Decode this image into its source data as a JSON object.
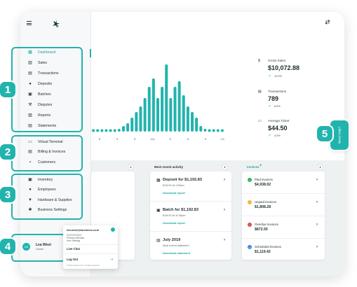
{
  "brand": {
    "accent": "#21b4ad",
    "accent_dark": "#1aa7a2"
  },
  "header": {
    "menu_icon": "hamburger-icon",
    "logo_icon": "brand-logo-icon",
    "sync_icon": "swap-arrows-icon"
  },
  "sidebar": {
    "groups": [
      {
        "badge": "1",
        "items": [
          {
            "label": "Dashboard",
            "icon": "grid-icon",
            "active": true
          },
          {
            "label": "Sales",
            "icon": "bar-chart-icon"
          },
          {
            "label": "Transactions",
            "icon": "transactions-icon"
          },
          {
            "label": "Deposits",
            "icon": "piggy-bank-icon"
          },
          {
            "label": "Batches",
            "icon": "batches-icon"
          },
          {
            "label": "Disputes",
            "icon": "gavel-icon"
          },
          {
            "label": "Reports",
            "icon": "report-icon"
          },
          {
            "label": "Statements",
            "icon": "document-icon"
          }
        ]
      },
      {
        "badge": "2",
        "items": [
          {
            "label": "Virtual Terminal",
            "icon": "terminal-icon"
          },
          {
            "label": "Billing & Invoices",
            "icon": "invoice-icon"
          },
          {
            "label": "Customers",
            "icon": "customers-icon"
          }
        ]
      },
      {
        "badge": "3",
        "items": [
          {
            "label": "Inventory",
            "icon": "inventory-icon"
          },
          {
            "label": "Employees",
            "icon": "employees-icon"
          },
          {
            "label": "Hardware & Supplies",
            "icon": "cart-icon"
          },
          {
            "label": "Business Settings",
            "icon": "settings-icon"
          }
        ]
      }
    ],
    "user": {
      "badge": "4",
      "initials": "LW",
      "name": "Lea West",
      "role": "Owner"
    }
  },
  "chart_data": {
    "type": "bar",
    "ticks": [
      "8",
      "8",
      "8",
      "12p",
      "8",
      "8",
      "8",
      "12a"
    ],
    "series": [
      {
        "values": [
          0,
          0,
          0,
          0,
          0,
          0,
          1,
          2,
          3,
          5,
          7,
          9,
          12,
          16,
          19,
          12,
          16,
          24,
          12,
          16,
          18,
          13,
          9,
          7,
          5,
          2,
          1,
          0,
          0,
          0,
          0
        ]
      }
    ],
    "ylim": [
      0,
      25
    ],
    "grid": false
  },
  "stats": [
    {
      "label": "Gross Sales",
      "value": "$10,072.88",
      "delta": "12.0%",
      "icon": "dollar-icon"
    },
    {
      "label": "Transactions",
      "value": "789",
      "delta": "8.0%",
      "icon": "transactions-icon"
    },
    {
      "label": "Average Ticket",
      "value": "$44.50",
      "delta": "4.0%",
      "icon": "ticket-icon"
    }
  ],
  "help": {
    "badge": "5",
    "label": "Need Help?"
  },
  "activity": {
    "title": "Most recent activity",
    "items": [
      {
        "title": "Deposit for $1,192.83",
        "sub": "8/10/19 at 1:03am",
        "link": "Download report",
        "icon": "deposit-icon"
      },
      {
        "title": "Batch for $1,192.83",
        "sub": "8/15/19 at 11:30pm",
        "link": "Download report",
        "icon": "batch-icon"
      },
      {
        "title": "July 2019",
        "sub": "Most recent statement",
        "link": "Download statement",
        "icon": "statement-icon"
      }
    ]
  },
  "invoices": {
    "title": "Invoices",
    "plus": "+",
    "items": [
      {
        "label": "Paid invoices",
        "value": "$4,938.92",
        "color": "#2fb24c"
      },
      {
        "label": "Unpaid invoices",
        "value": "$1,808.28",
        "color": "#f2b531"
      },
      {
        "label": "Overdue invoices",
        "value": "$872.50",
        "color": "#e24a3b"
      },
      {
        "label": "Scheduled invoices",
        "value": "$1,119.42",
        "color": "#2f7fd8"
      }
    ]
  },
  "popup": {
    "email": "lea.west@business.com",
    "lines": [
      "XXXXXXXXXX",
      "Premium Member",
      "User Settings"
    ],
    "live_chat": "Live Chat",
    "logout": "Log Out",
    "footer": "©2019 business.com. All rights reserved."
  }
}
